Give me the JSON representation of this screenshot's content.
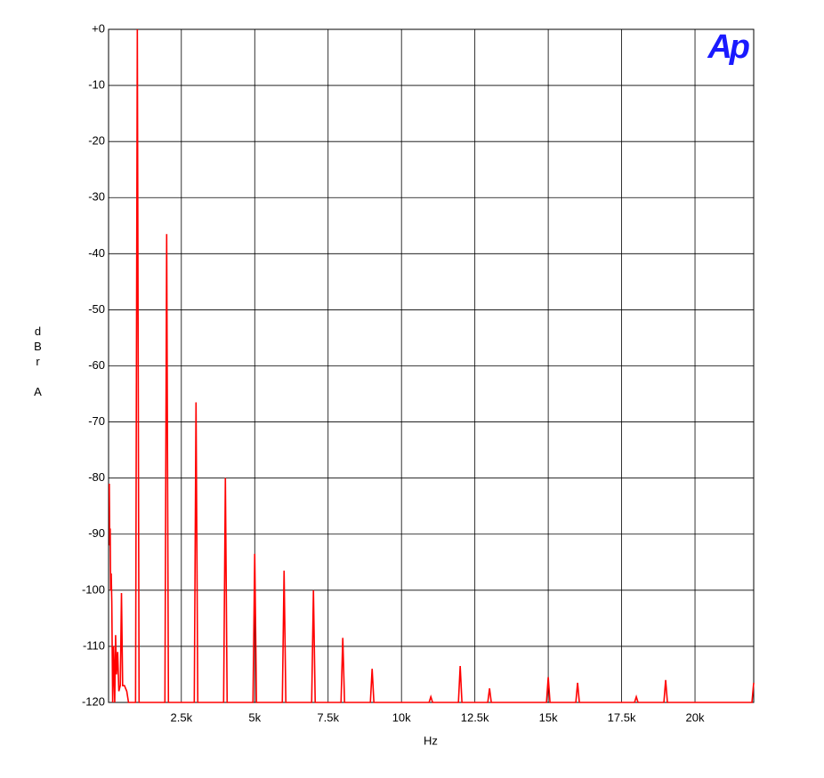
{
  "chart_data": {
    "type": "line",
    "xlabel": "Hz",
    "ylabel": "dBr A",
    "logo": "Ap",
    "xlim": [
      20,
      22000
    ],
    "ylim": [
      -120,
      0
    ],
    "xticks": [
      {
        "value": 2500,
        "label": "2.5k"
      },
      {
        "value": 5000,
        "label": "5k"
      },
      {
        "value": 7500,
        "label": "7.5k"
      },
      {
        "value": 10000,
        "label": "10k"
      },
      {
        "value": 12500,
        "label": "12.5k"
      },
      {
        "value": 15000,
        "label": "15k"
      },
      {
        "value": 17500,
        "label": "17.5k"
      },
      {
        "value": 20000,
        "label": "20k"
      }
    ],
    "yticks": [
      {
        "value": 0,
        "label": "+0"
      },
      -10,
      -20,
      -30,
      -40,
      -50,
      -60,
      -70,
      -80,
      -90,
      -100,
      -110,
      -120
    ],
    "grid": true,
    "x": [
      45,
      60,
      75,
      90,
      110,
      130,
      160,
      190,
      230,
      260,
      290,
      330,
      370,
      420,
      460,
      500,
      560,
      640,
      700,
      940,
      1000,
      1060,
      1940,
      2000,
      2060,
      2940,
      3000,
      3060,
      3940,
      4000,
      4060,
      4940,
      5000,
      5060,
      5940,
      6000,
      6060,
      6940,
      7000,
      7060,
      7940,
      8000,
      8060,
      8940,
      9000,
      9060,
      10940,
      11000,
      11060,
      11940,
      12000,
      12060,
      12940,
      13000,
      13060,
      14940,
      15000,
      15060,
      15940,
      16000,
      16060,
      17940,
      18000,
      18060,
      18940,
      19000,
      19060,
      21940,
      22000
    ],
    "series": [
      {
        "color": "#ff0000",
        "values": [
          -81,
          -92,
          -89,
          -100,
          -97,
          -102,
          -120,
          -110,
          -120,
          -108,
          -115,
          -111,
          -118,
          -117,
          -100.5,
          -117,
          -117,
          -118,
          -120,
          -120,
          0,
          -120,
          -120,
          -36.5,
          -120,
          -120,
          -66.5,
          -120,
          -120,
          -80,
          -120,
          -120,
          -93.5,
          -120,
          -120,
          -96.5,
          -120,
          -120,
          -100,
          -120,
          -120,
          -108.5,
          -120,
          -120,
          -114,
          -120,
          -120,
          -119,
          -120,
          -120,
          -113.5,
          -120,
          -120,
          -117.5,
          -120,
          -120,
          -115.5,
          -120,
          -120,
          -116.5,
          -120,
          -120,
          -119,
          -120,
          -120,
          -116,
          -120,
          -120,
          -116.5
        ]
      }
    ]
  }
}
